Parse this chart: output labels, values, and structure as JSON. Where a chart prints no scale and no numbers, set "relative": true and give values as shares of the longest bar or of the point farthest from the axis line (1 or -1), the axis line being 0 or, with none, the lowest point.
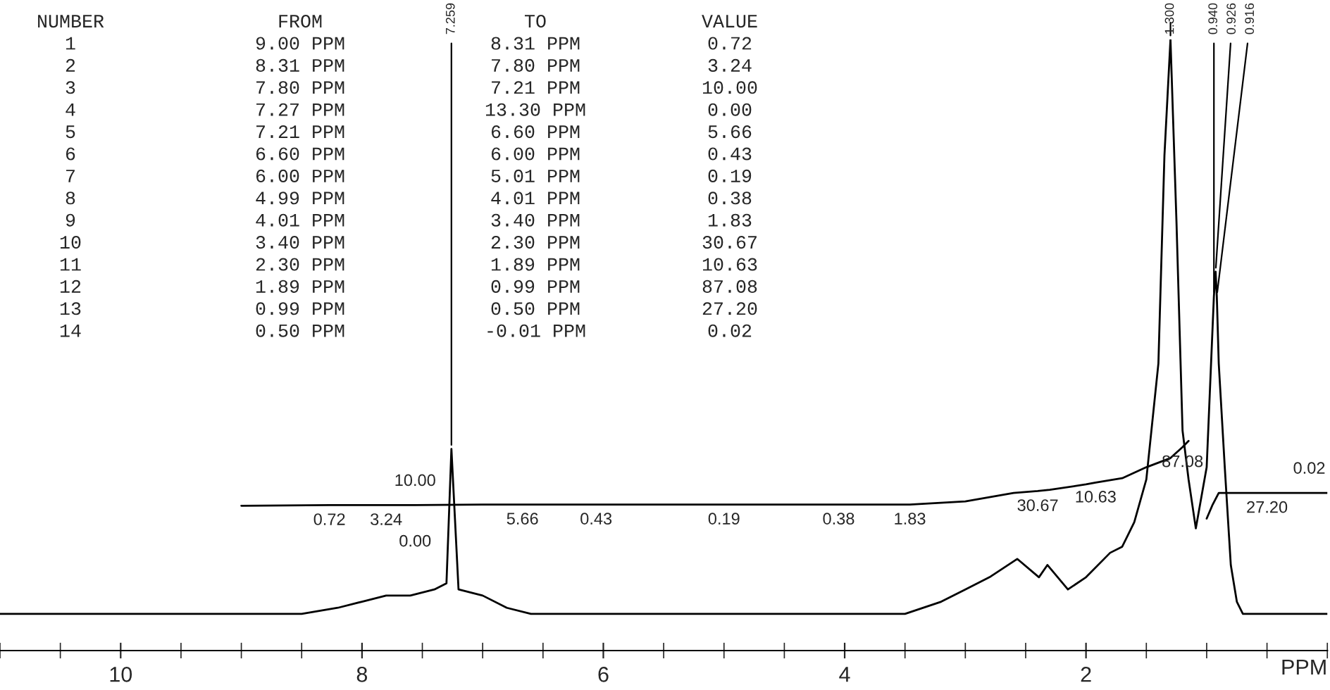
{
  "chart_data": {
    "type": "line",
    "relative": true,
    "xlabel": "PPM",
    "tick_labels": "x",
    "xlim": [
      11.0,
      0.0
    ],
    "xticks": [
      {
        "value": 11.0,
        "label": null
      },
      {
        "value": 10.5,
        "label": null
      },
      10,
      {
        "value": 9.5,
        "label": null
      },
      {
        "value": 9.0,
        "label": null
      },
      {
        "value": 8.5,
        "label": null
      },
      8,
      {
        "value": 7.5,
        "label": null
      },
      {
        "value": 7.0,
        "label": null
      },
      {
        "value": 6.5,
        "label": null
      },
      6,
      {
        "value": 5.5,
        "label": null
      },
      {
        "value": 5.0,
        "label": null
      },
      {
        "value": 4.5,
        "label": null
      },
      4,
      {
        "value": 3.5,
        "label": null
      },
      {
        "value": 3.0,
        "label": null
      },
      {
        "value": 2.5,
        "label": null
      },
      2,
      {
        "value": 1.5,
        "label": null
      },
      {
        "value": 1.0,
        "label": null
      },
      {
        "value": 0.5,
        "label": null
      },
      {
        "value": 0.0,
        "label": null
      }
    ],
    "series": [
      {
        "color": "#000000",
        "x": [
          11.0,
          9.0,
          8.5,
          8.2,
          8.0,
          7.8,
          7.6,
          7.4,
          7.3,
          7.259,
          7.2,
          7.0,
          6.8,
          6.6,
          6.0,
          4.0,
          3.5,
          3.2,
          3.0,
          2.8,
          2.57,
          2.39,
          2.32,
          2.15,
          2.0,
          1.8,
          1.7,
          1.6,
          1.5,
          1.4,
          1.35,
          1.3,
          1.25,
          1.2,
          1.15,
          1.09,
          1.0,
          0.94,
          0.926,
          0.916,
          0.9,
          0.85,
          0.8,
          0.75,
          0.7,
          0.5,
          0.0
        ],
        "values": [
          0.06,
          0.06,
          0.06,
          0.07,
          0.08,
          0.09,
          0.09,
          0.1,
          0.11,
          0.33,
          0.1,
          0.09,
          0.07,
          0.06,
          0.06,
          0.06,
          0.06,
          0.08,
          0.1,
          0.12,
          0.15,
          0.12,
          0.14,
          0.1,
          0.12,
          0.16,
          0.17,
          0.21,
          0.28,
          0.47,
          0.81,
          1.0,
          0.7,
          0.36,
          0.28,
          0.2,
          0.3,
          0.58,
          0.62,
          0.58,
          0.47,
          0.3,
          0.14,
          0.08,
          0.06,
          0.06,
          0.06
        ]
      },
      {
        "color": "#000000",
        "x": [
          9.0,
          8.27,
          7.8,
          7.56,
          7.0,
          6.67,
          6.06,
          5.0,
          4.05,
          3.46,
          3.0,
          2.6,
          2.4,
          2.3,
          2.0,
          1.92,
          1.7,
          1.5,
          1.3,
          1.2,
          1.15,
          1.05,
          1.0,
          0.95,
          0.9,
          0.5,
          0.15,
          0.0
        ],
        "values": [
          0.237,
          0.238,
          0.238,
          0.238,
          0.239,
          0.239,
          0.239,
          0.239,
          0.239,
          0.239,
          0.244,
          0.258,
          0.261,
          0.263,
          0.272,
          0.275,
          0.282,
          0.3,
          0.315,
          0.333,
          0.343,
          null,
          0.216,
          0.239,
          0.258,
          0.258,
          0.258,
          0.258
        ]
      }
    ],
    "annotations": [
      "NUMBER",
      "FROM",
      "TO",
      "VALUE",
      "1",
      "9.00 PPM",
      "8.31 PPM",
      "0.72",
      "2",
      "8.31 PPM",
      "7.80 PPM",
      "3.24",
      "3",
      "7.80 PPM",
      "7.21 PPM",
      "10.00",
      "4",
      "7.27 PPM",
      "13.30 PPM",
      "0.00",
      "5",
      "7.21 PPM",
      "6.60 PPM",
      "5.66",
      "6",
      "6.60 PPM",
      "6.00 PPM",
      "0.43",
      "7",
      "6.00 PPM",
      "5.01 PPM",
      "0.19",
      "8",
      "4.99 PPM",
      "4.01 PPM",
      "0.38",
      "9",
      "4.01 PPM",
      "3.40 PPM",
      "1.83",
      "10",
      "3.40 PPM",
      "2.30 PPM",
      "30.67",
      "11",
      "2.30 PPM",
      "1.89 PPM",
      "10.63",
      "12",
      "1.89 PPM",
      "0.99 PPM",
      "87.08",
      "13",
      "0.99 PPM",
      "0.50 PPM",
      "27.20",
      "14",
      "0.50 PPM",
      "-0.01 PPM",
      "0.02",
      {
        "text": "7.259",
        "x": 7.259,
        "y": 0.33
      },
      {
        "text": "1.300",
        "x": 1.3,
        "y": 1.0
      },
      {
        "text": "0.940",
        "x": 0.94,
        "y": 0.58
      },
      {
        "text": "0.926",
        "x": 0.926,
        "y": 0.62
      },
      {
        "text": "0.916",
        "x": 0.916,
        "y": 0.58
      },
      {
        "text": "0.72",
        "x": 8.27,
        "y": 0.238
      },
      {
        "text": "3.24",
        "x": 7.8,
        "y": 0.238
      },
      {
        "text": "10.00",
        "x": 7.56,
        "y": 0.238
      },
      {
        "text": "0.00",
        "x": 7.56,
        "y": 0.238
      },
      {
        "text": "5.66",
        "x": 6.67,
        "y": 0.239
      },
      {
        "text": "0.43",
        "x": 6.06,
        "y": 0.239
      },
      {
        "text": "0.19",
        "x": 5.0,
        "y": 0.239
      },
      {
        "text": "0.38",
        "x": 4.05,
        "y": 0.239
      },
      {
        "text": "1.83",
        "x": 3.46,
        "y": 0.239
      },
      {
        "text": "30.67",
        "x": 2.4,
        "y": 0.261
      },
      {
        "text": "10.63",
        "x": 1.92,
        "y": 0.275
      },
      {
        "text": "87.08",
        "x": 1.2,
        "y": 0.333
      },
      {
        "text": "27.20",
        "x": 0.5,
        "y": 0.258
      },
      {
        "text": "0.02",
        "x": 0.15,
        "y": 0.258
      }
    ]
  }
}
